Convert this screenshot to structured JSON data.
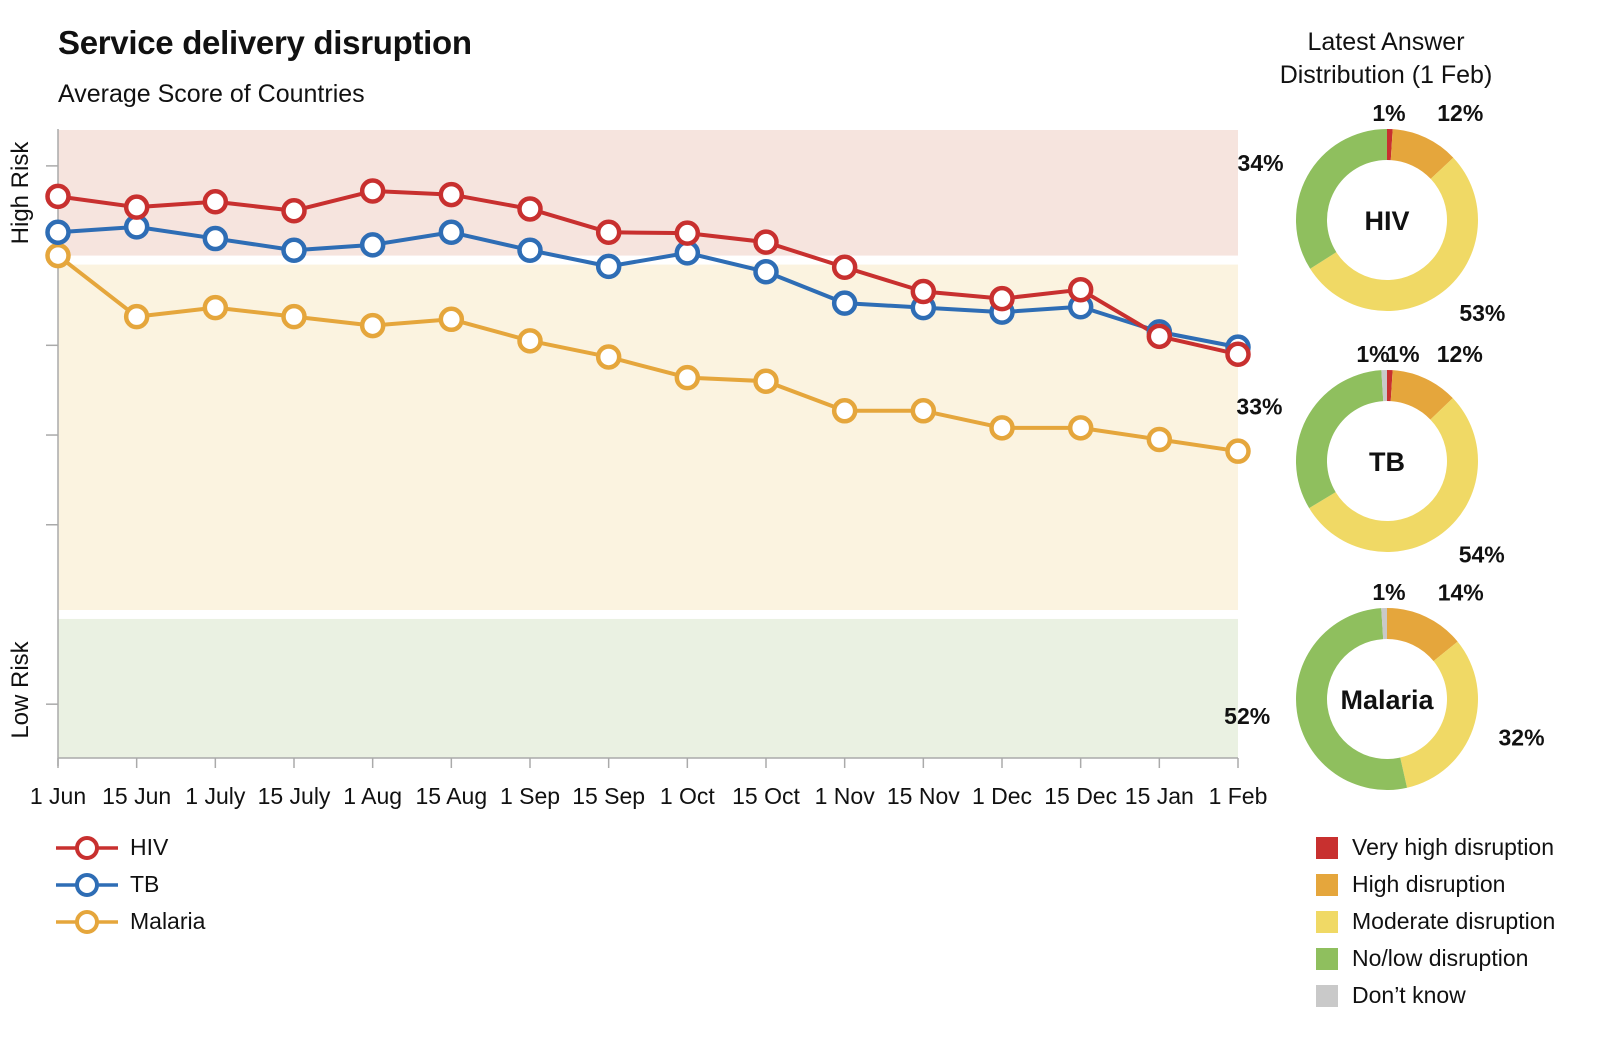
{
  "title": "Service delivery disruption",
  "subtitle": "Average Score of Countries",
  "donut_heading": [
    "Latest Answer",
    "Distribution (1 Feb)"
  ],
  "colors": {
    "hiv": "#c8302f",
    "tb": "#2e6db5",
    "malaria": "#e5a63c",
    "band_high": "#f6e4de",
    "band_mid": "#fbf3e0",
    "band_low": "#eaf1e2",
    "very_high": "#c8302f",
    "high": "#e5a63c",
    "moderate": "#f0d965",
    "nolow": "#8fbf5e",
    "dontknow": "#c9c9c9"
  },
  "chart_data": [
    {
      "type": "line",
      "title": "Service delivery disruption",
      "subtitle": "Average Score of Countries",
      "ylabel_top": "High Risk",
      "ylabel_bottom": "Low Risk",
      "categories": [
        "1 Jun",
        "15 Jun",
        "1 July",
        "15 July",
        "1 Aug",
        "15 Aug",
        "1 Sep",
        "15 Sep",
        "1 Oct",
        "15 Oct",
        "1 Nov",
        "15 Nov",
        "1 Dec",
        "15 Dec",
        "15 Jan",
        "1 Feb"
      ],
      "bands": [
        {
          "name": "High Risk",
          "from": 7.0,
          "to": 8.4,
          "color": "#f6e4de"
        },
        {
          "name": "",
          "from": 3.05,
          "to": 6.9,
          "color": "#fbf3e0"
        },
        {
          "name": "Low Risk",
          "from": 1.4,
          "to": 2.95,
          "color": "#eaf1e2"
        }
      ],
      "ylim": [
        1.4,
        8.4
      ],
      "yticks": [
        2,
        4,
        5,
        6,
        8
      ],
      "grid": false,
      "legend": "bottom-left",
      "series": [
        {
          "name": "HIV",
          "color": "#c8302f",
          "values": [
            7.66,
            7.54,
            7.6,
            7.5,
            7.72,
            7.68,
            7.52,
            7.26,
            7.25,
            7.15,
            6.87,
            6.6,
            6.52,
            6.62,
            6.1,
            5.9
          ]
        },
        {
          "name": "TB",
          "color": "#2e6db5",
          "values": [
            7.26,
            7.32,
            7.19,
            7.06,
            7.12,
            7.26,
            7.06,
            6.88,
            7.03,
            6.82,
            6.47,
            6.42,
            6.37,
            6.43,
            6.15,
            5.98
          ]
        },
        {
          "name": "Malaria",
          "color": "#e5a63c",
          "values": [
            7.0,
            6.32,
            6.42,
            6.32,
            6.22,
            6.29,
            6.05,
            5.87,
            5.64,
            5.6,
            5.27,
            5.27,
            5.08,
            5.08,
            4.95,
            4.82
          ]
        }
      ]
    },
    {
      "type": "pie",
      "title": "HIV",
      "labels": [
        "Very high disruption",
        "High disruption",
        "Moderate disruption",
        "No/low disruption",
        "Don’t know"
      ],
      "values": [
        1,
        12,
        53,
        34,
        0
      ],
      "value_labels": [
        "1%",
        "12%",
        "53%",
        "34%",
        ""
      ]
    },
    {
      "type": "pie",
      "title": "TB",
      "labels": [
        "Very high disruption",
        "High disruption",
        "Moderate disruption",
        "No/low disruption",
        "Don’t know"
      ],
      "values": [
        1,
        12,
        54,
        33,
        1
      ],
      "value_labels": [
        "1%",
        "12%",
        "54%",
        "33%",
        "1%"
      ]
    },
    {
      "type": "pie",
      "title": "Malaria",
      "labels": [
        "Very high disruption",
        "High disruption",
        "Moderate disruption",
        "No/low disruption",
        "Don’t know"
      ],
      "values": [
        0,
        14,
        32,
        52,
        1
      ],
      "value_labels": [
        "",
        "14%",
        "32%",
        "52%",
        "1%"
      ]
    }
  ],
  "series_legend": [
    {
      "label": "HIV",
      "color": "#c8302f"
    },
    {
      "label": "TB",
      "color": "#2e6db5"
    },
    {
      "label": "Malaria",
      "color": "#e5a63c"
    }
  ],
  "category_legend": [
    {
      "label": "Very high disruption",
      "color": "#c8302f"
    },
    {
      "label": "High disruption",
      "color": "#e5a63c"
    },
    {
      "label": "Moderate disruption",
      "color": "#f0d965"
    },
    {
      "label": "No/low disruption",
      "color": "#8fbf5e"
    },
    {
      "label": "Don’t know",
      "color": "#c9c9c9"
    }
  ]
}
